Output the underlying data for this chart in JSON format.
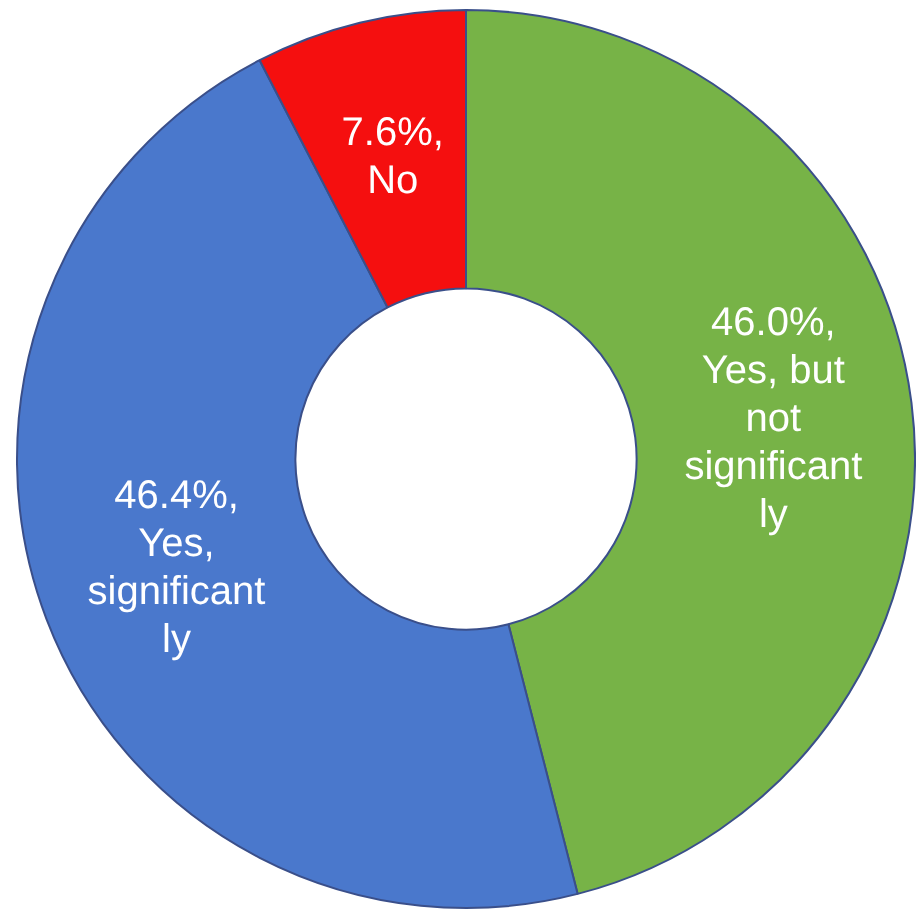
{
  "chart_data": {
    "type": "donut",
    "categories": [
      "Yes, but not significantly",
      "Yes, significantly",
      "No"
    ],
    "values": [
      46.0,
      46.4,
      7.6
    ],
    "value_labels": [
      "46.0%,",
      "46.4%,",
      "7.6%,"
    ],
    "colors": [
      "#77b347",
      "#4a78cc",
      "#f50f0f"
    ]
  }
}
